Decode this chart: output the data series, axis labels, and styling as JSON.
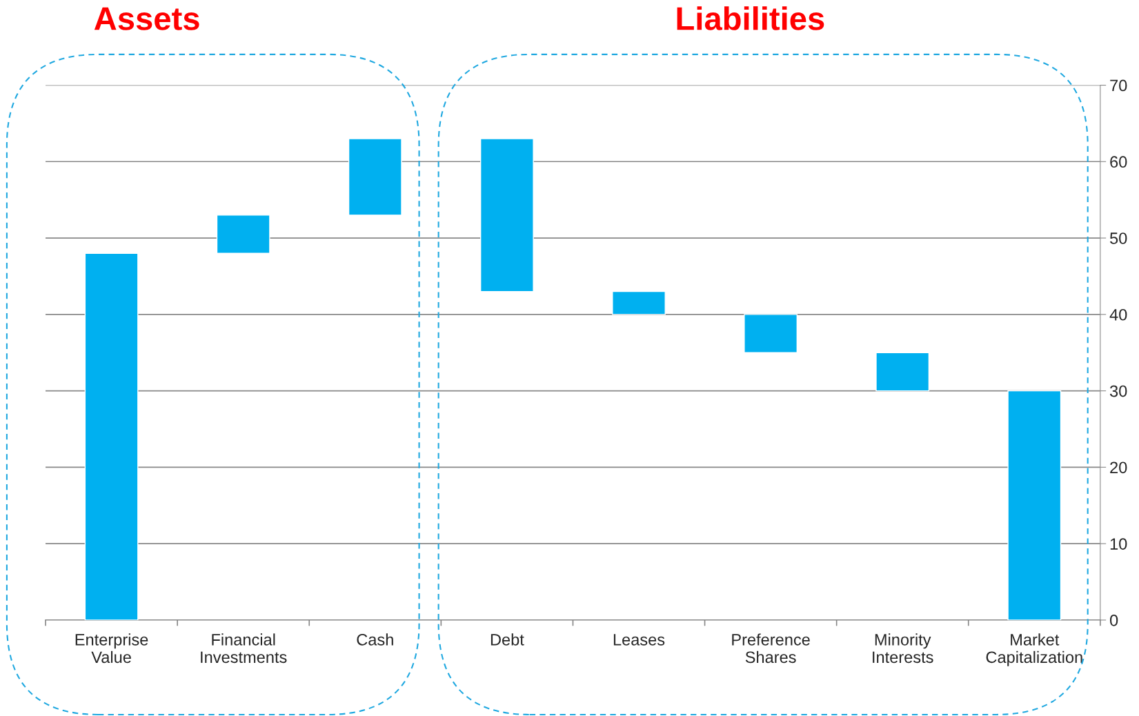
{
  "chart_data": {
    "type": "bar",
    "categories": [
      "Enterprise\nValue",
      "Financial\nInvestments",
      "Cash",
      "Debt",
      "Leases",
      "Preference\nShares",
      "Minority\nInterests",
      "Market\nCapitalization"
    ],
    "values": [
      48,
      5,
      10,
      20,
      3,
      5,
      5,
      30
    ],
    "base": [
      0,
      48,
      53,
      43,
      40,
      35,
      30,
      0
    ],
    "color": "#00b0f0",
    "ylim": [
      0,
      70
    ],
    "yticks": [
      0,
      10,
      20,
      30,
      40,
      50,
      60,
      70
    ],
    "grid": "y",
    "annotations": [
      "Assets",
      "Liabilities"
    ]
  }
}
